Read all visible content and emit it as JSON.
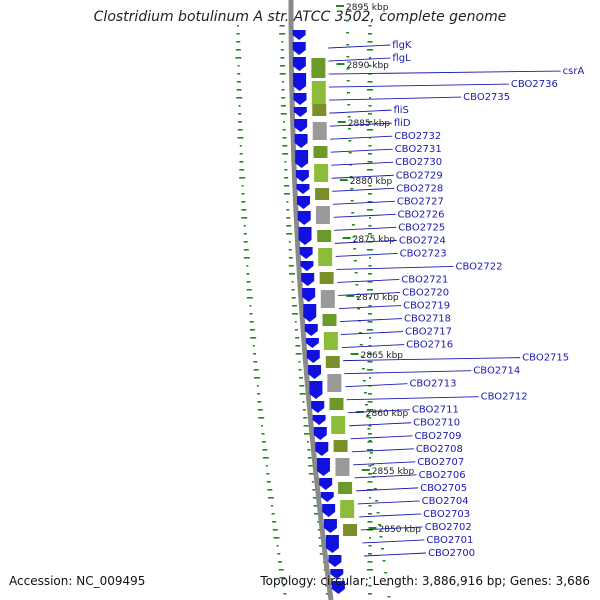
{
  "title": "Clostridium botulinum A str. ATCC 3502, complete genome",
  "footer": {
    "accession": "Accession: NC_009495",
    "summary": "Topology: circular; Length: 3,886,916 bp; Genes: 3,686"
  },
  "colors": {
    "gene_blue": "#1010e0",
    "label_blue": "#1a1ab0",
    "tick_green": "#1f8a1f",
    "backbone": "#8a8a8a"
  },
  "scale_ticks": [
    {
      "label": "2895 kbp"
    },
    {
      "label": "2890 kbp"
    },
    {
      "label": "2885 kbp"
    },
    {
      "label": "2880 kbp"
    },
    {
      "label": "2875 kbp"
    },
    {
      "label": "2870 kbp"
    },
    {
      "label": "2865 kbp"
    },
    {
      "label": "2860 kbp"
    },
    {
      "label": "2855 kbp"
    },
    {
      "label": "2850 kbp"
    }
  ],
  "gene_labels": [
    "flgK",
    "flgL",
    "csrA",
    "CBO2736",
    "CBO2735",
    "fliS",
    "fliD",
    "CBO2732",
    "CBO2731",
    "CBO2730",
    "CBO2729",
    "CBO2728",
    "CBO2727",
    "CBO2726",
    "CBO2725",
    "CBO2724",
    "CBO2723",
    "CBO2722",
    "CBO2721",
    "CBO2720",
    "CBO2719",
    "CBO2718",
    "CBO2717",
    "CBO2716",
    "CBO2715",
    "CBO2714",
    "CBO2713",
    "CBO2712",
    "CBO2711",
    "CBO2710",
    "CBO2709",
    "CBO2708",
    "CBO2707",
    "CBO2706",
    "CBO2705",
    "CBO2704",
    "CBO2703",
    "CBO2702",
    "CBO2701",
    "CBO2700"
  ]
}
